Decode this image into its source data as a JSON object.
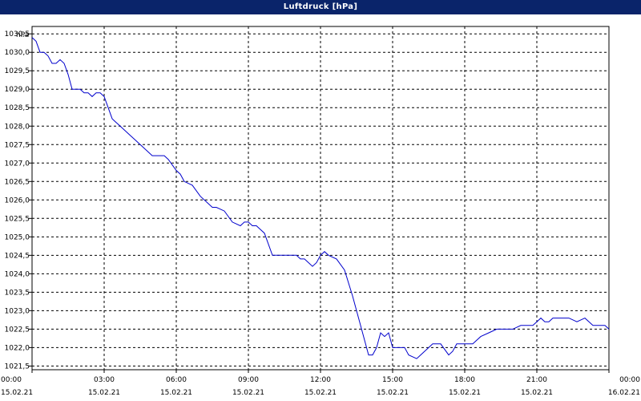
{
  "window": {
    "title": "Luftdruck [hPa]"
  },
  "chart_data": {
    "type": "line",
    "title": "Luftdruck [hPa]",
    "ylabel": "hPa",
    "ylim": [
      1021.4,
      1030.7
    ],
    "yticks": [
      "1021,5",
      "1022,0",
      "1022,5",
      "1023,0",
      "1023,5",
      "1024,0",
      "1024,5",
      "1025,0",
      "1025,5",
      "1026,0",
      "1026,5",
      "1027,0",
      "1027,5",
      "1028,0",
      "1028,5",
      "1029,0",
      "1029,5",
      "1030,0",
      "1030,5"
    ],
    "xlim": [
      "2021-02-15 00:00",
      "2021-02-16 00:00"
    ],
    "xticks": [
      {
        "time": "00:00",
        "date": "15.02.21"
      },
      {
        "time": "03:00",
        "date": "15.02.21"
      },
      {
        "time": "06:00",
        "date": "15.02.21"
      },
      {
        "time": "09:00",
        "date": "15.02.21"
      },
      {
        "time": "12:00",
        "date": "15.02.21"
      },
      {
        "time": "15:00",
        "date": "15.02.21"
      },
      {
        "time": "18:00",
        "date": "15.02.21"
      },
      {
        "time": "21:00",
        "date": "15.02.21"
      },
      {
        "time": "00:00",
        "date": "16.02.21"
      }
    ],
    "grid": true,
    "line_color": "#0000cc",
    "series": [
      {
        "x": [
          "2021-02-15 00:00",
          "2021-02-15 00:10",
          "2021-02-15 00:20",
          "2021-02-15 00:30",
          "2021-02-15 00:40",
          "2021-02-15 00:50",
          "2021-02-15 01:00",
          "2021-02-15 01:10",
          "2021-02-15 01:20",
          "2021-02-15 01:30",
          "2021-02-15 01:40",
          "2021-02-15 01:50",
          "2021-02-15 02:00",
          "2021-02-15 02:10",
          "2021-02-15 02:20",
          "2021-02-15 02:30",
          "2021-02-15 02:40",
          "2021-02-15 02:50",
          "2021-02-15 03:00",
          "2021-02-15 03:10",
          "2021-02-15 03:20",
          "2021-02-15 03:30",
          "2021-02-15 03:40",
          "2021-02-15 04:00",
          "2021-02-15 04:30",
          "2021-02-15 05:00",
          "2021-02-15 05:30",
          "2021-02-15 05:40",
          "2021-02-15 06:00",
          "2021-02-15 06:10",
          "2021-02-15 06:20",
          "2021-02-15 06:40",
          "2021-02-15 07:00",
          "2021-02-15 07:10",
          "2021-02-15 07:30",
          "2021-02-15 07:40",
          "2021-02-15 08:00",
          "2021-02-15 08:20",
          "2021-02-15 08:40",
          "2021-02-15 08:50",
          "2021-02-15 09:00",
          "2021-02-15 09:10",
          "2021-02-15 09:20",
          "2021-02-15 09:30",
          "2021-02-15 09:40",
          "2021-02-15 10:00",
          "2021-02-15 10:20",
          "2021-02-15 10:40",
          "2021-02-15 11:00",
          "2021-02-15 11:10",
          "2021-02-15 11:20",
          "2021-02-15 11:40",
          "2021-02-15 11:50",
          "2021-02-15 12:00",
          "2021-02-15 12:10",
          "2021-02-15 12:20",
          "2021-02-15 12:40",
          "2021-02-15 13:00",
          "2021-02-15 13:20",
          "2021-02-15 13:40",
          "2021-02-15 14:00",
          "2021-02-15 14:10",
          "2021-02-15 14:20",
          "2021-02-15 14:30",
          "2021-02-15 14:40",
          "2021-02-15 14:50",
          "2021-02-15 15:00",
          "2021-02-15 15:10",
          "2021-02-15 15:30",
          "2021-02-15 15:40",
          "2021-02-15 16:00",
          "2021-02-15 16:10",
          "2021-02-15 16:20",
          "2021-02-15 16:40",
          "2021-02-15 17:00",
          "2021-02-15 17:20",
          "2021-02-15 17:30",
          "2021-02-15 17:40",
          "2021-02-15 18:00",
          "2021-02-15 18:20",
          "2021-02-15 18:40",
          "2021-02-15 19:00",
          "2021-02-15 19:20",
          "2021-02-15 19:30",
          "2021-02-15 20:00",
          "2021-02-15 20:20",
          "2021-02-15 20:40",
          "2021-02-15 20:50",
          "2021-02-15 21:00",
          "2021-02-15 21:10",
          "2021-02-15 21:20",
          "2021-02-15 21:30",
          "2021-02-15 21:40",
          "2021-02-15 22:00",
          "2021-02-15 22:20",
          "2021-02-15 22:40",
          "2021-02-15 23:00",
          "2021-02-15 23:20",
          "2021-02-15 23:40",
          "2021-02-15 23:50",
          "2021-02-16 00:00"
        ],
        "values": [
          1030.4,
          1030.3,
          1030.0,
          1030.0,
          1029.9,
          1029.7,
          1029.7,
          1029.8,
          1029.7,
          1029.4,
          1029.0,
          1029.0,
          1029.0,
          1028.9,
          1028.9,
          1028.8,
          1028.9,
          1028.9,
          1028.8,
          1028.5,
          1028.2,
          1028.1,
          1028.0,
          1027.8,
          1027.5,
          1027.2,
          1027.2,
          1027.1,
          1026.8,
          1026.7,
          1026.5,
          1026.4,
          1026.1,
          1026.0,
          1025.8,
          1025.8,
          1025.7,
          1025.4,
          1025.3,
          1025.4,
          1025.4,
          1025.3,
          1025.3,
          1025.2,
          1025.1,
          1024.5,
          1024.5,
          1024.5,
          1024.5,
          1024.4,
          1024.4,
          1024.2,
          1024.3,
          1024.5,
          1024.6,
          1024.5,
          1024.4,
          1024.1,
          1023.4,
          1022.6,
          1021.8,
          1021.8,
          1022.0,
          1022.4,
          1022.3,
          1022.4,
          1022.0,
          1022.0,
          1022.0,
          1021.8,
          1021.7,
          1021.8,
          1021.9,
          1022.1,
          1022.1,
          1021.8,
          1021.9,
          1022.1,
          1022.1,
          1022.1,
          1022.3,
          1022.4,
          1022.5,
          1022.5,
          1022.5,
          1022.6,
          1022.6,
          1022.6,
          1022.7,
          1022.8,
          1022.7,
          1022.7,
          1022.8,
          1022.8,
          1022.8,
          1022.7,
          1022.8,
          1022.6,
          1022.6,
          1022.6,
          1022.5
        ]
      }
    ]
  }
}
